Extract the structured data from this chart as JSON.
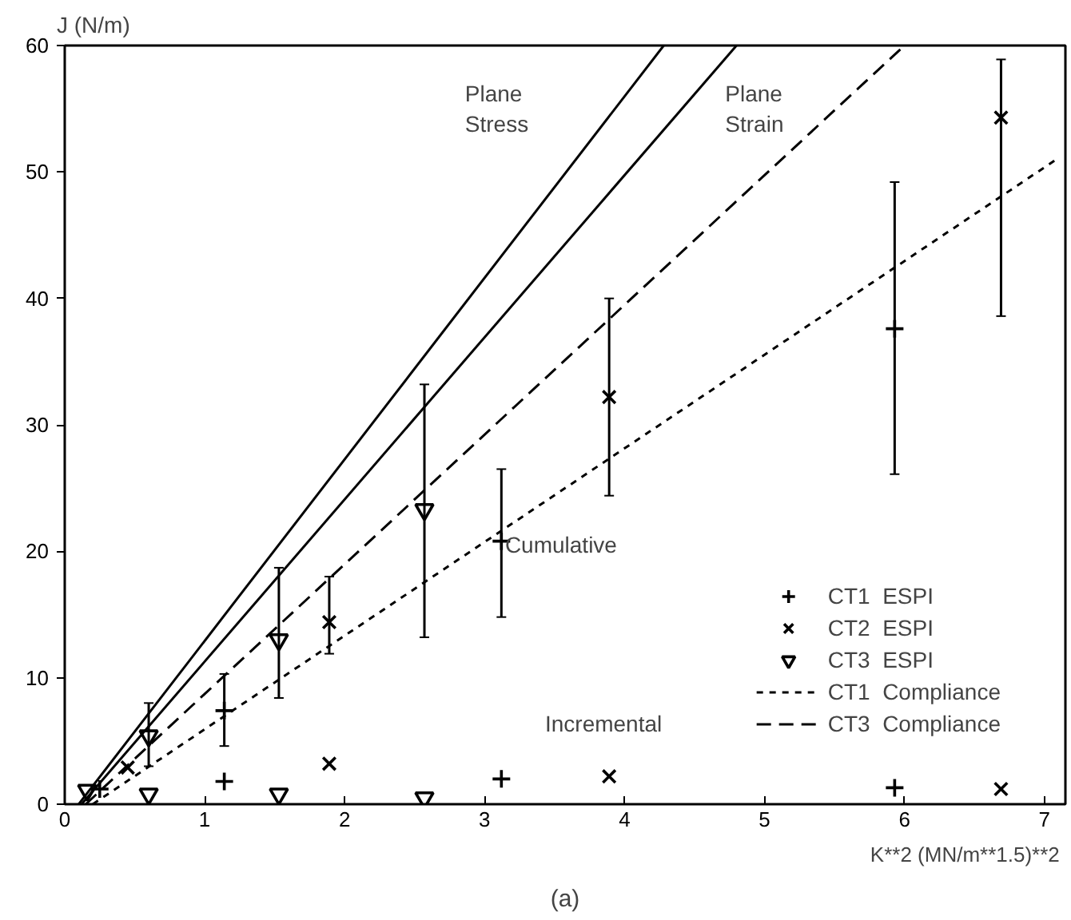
{
  "chart_data": {
    "type": "scatter",
    "xlabel": "K**2  (MN/m**1.5)**2",
    "ylabel": "J  (N/m)",
    "xlim": [
      0,
      7.15
    ],
    "ylim": [
      0,
      60
    ],
    "xticks": [
      0,
      1,
      2,
      3,
      4,
      5,
      6,
      7
    ],
    "yticks": [
      0,
      10,
      20,
      30,
      40,
      50,
      60
    ],
    "grid": false,
    "legend": "bottom right",
    "series": [
      {
        "name": "CT1  ESPI",
        "color": "#000000",
        "marker": "cross",
        "x": [
          0.25,
          1.14,
          3.12,
          5.93,
          1.14,
          3.12,
          5.93
        ],
        "values": [
          1.2,
          7.4,
          20.8,
          37.6,
          1.8,
          2.0,
          1.3
        ],
        "errors": [
          null,
          [
            4.6,
            10.3
          ],
          [
            14.8,
            26.5
          ],
          [
            26.1,
            49.2
          ],
          null,
          null,
          null
        ]
      },
      {
        "name": "CT2  ESPI",
        "color": "#000000",
        "marker": "x",
        "x": [
          0.45,
          1.89,
          3.89,
          6.69,
          1.89,
          3.89,
          6.69
        ],
        "values": [
          2.9,
          14.4,
          32.2,
          54.3,
          3.2,
          2.2,
          1.2
        ],
        "errors": [
          null,
          [
            11.9,
            18
          ],
          [
            24.4,
            40
          ],
          [
            38.6,
            58.9
          ],
          null,
          null,
          null
        ]
      },
      {
        "name": "CT3  ESPI",
        "color": "#000000",
        "marker": "triangle_down",
        "x": [
          0.16,
          0.6,
          1.53,
          2.57,
          0.6,
          1.53,
          2.57
        ],
        "values": [
          1.1,
          5.4,
          13,
          23.3,
          0.8,
          0.8,
          0.5
        ],
        "errors": [
          null,
          [
            3,
            8
          ],
          [
            8.4,
            18.7
          ],
          [
            13.2,
            33.2
          ],
          null,
          null,
          null
        ]
      },
      {
        "name": "CT1  Compliance",
        "type": "line",
        "color": "#000000",
        "line_style": "dotted",
        "x": [
          0.2,
          7.1
        ],
        "values": [
          0,
          51.1
        ]
      },
      {
        "name": "CT3  Compliance",
        "type": "line",
        "color": "#000000",
        "line_style": "dashed",
        "x": [
          0.15,
          6.0
        ],
        "values": [
          0,
          60
        ]
      },
      {
        "type": "line",
        "color": "#000000",
        "line_style": "solid",
        "x": [
          0.1,
          4.28
        ],
        "values": [
          0,
          60
        ]
      },
      {
        "type": "line",
        "color": "#000000",
        "line_style": "solid",
        "x": [
          0.12,
          4.8
        ],
        "values": [
          0,
          60
        ]
      }
    ],
    "annotations": [
      "Plane\nStress",
      "Plane\nStrain",
      "Cumulative",
      "Incremental",
      "(a)"
    ]
  }
}
